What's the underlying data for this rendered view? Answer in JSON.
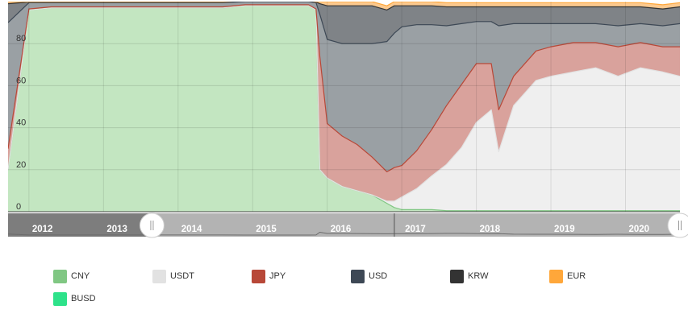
{
  "chart_data": {
    "type": "area",
    "stacked": true,
    "percent": true,
    "yticks": [
      0,
      20,
      40,
      60,
      80
    ],
    "ylim": [
      0,
      100
    ],
    "xlim": [
      2011.72,
      2020.73
    ],
    "year_labels": [
      "2012",
      "2013",
      "2014",
      "2015",
      "2016",
      "2017",
      "2018",
      "2019",
      "2020"
    ],
    "grid": true,
    "legend_position": "bottom",
    "navigator": {
      "range_start": 2011.72,
      "range_end": 2020.73,
      "left_handle_at": 2013.65,
      "right_handle_at": 2020.73
    },
    "x": [
      2011.72,
      2012.0,
      2012.3,
      2012.6,
      2012.9,
      2013.2,
      2013.5,
      2013.75,
      2014.0,
      2014.3,
      2014.6,
      2014.9,
      2015.2,
      2015.5,
      2015.75,
      2015.85,
      2015.9,
      2016.0,
      2016.2,
      2016.4,
      2016.6,
      2016.8,
      2016.9,
      2017.0,
      2017.2,
      2017.4,
      2017.6,
      2017.8,
      2018.0,
      2018.2,
      2018.3,
      2018.5,
      2018.8,
      2019.0,
      2019.3,
      2019.6,
      2019.9,
      2020.2,
      2020.5,
      2020.73
    ],
    "series": [
      {
        "name": "CNY",
        "color": "#80c783",
        "values": [
          20,
          96,
          97,
          97,
          97,
          97,
          97,
          97,
          97,
          97,
          97,
          98,
          98,
          98,
          98,
          96,
          20,
          16,
          12,
          10,
          8,
          4,
          2,
          1,
          1,
          1,
          0.5,
          0.5,
          0.5,
          0.5,
          0.5,
          0.5,
          0.5,
          0.5,
          0.5,
          0.5,
          0.5,
          0.5,
          0.5,
          0.5
        ]
      },
      {
        "name": "USDT",
        "color": "#e2e2e2",
        "values": [
          0,
          0,
          0,
          0,
          0,
          0,
          0,
          0,
          0,
          0,
          0,
          0,
          0,
          0,
          0,
          0,
          0,
          0,
          0,
          0,
          0,
          1,
          3,
          6,
          10,
          16,
          22,
          30,
          42,
          48,
          28,
          50,
          62,
          64,
          66,
          68,
          64,
          68,
          66,
          64
        ]
      },
      {
        "name": "JPY",
        "color": "#b84838",
        "values": [
          10,
          0.5,
          0.5,
          0.5,
          0.5,
          0.5,
          0.5,
          0.5,
          0.5,
          0.5,
          0.5,
          0.5,
          0.5,
          0.5,
          0.5,
          0.5,
          54,
          26,
          24,
          22,
          18,
          14,
          16,
          15,
          18,
          22,
          28,
          30,
          28,
          22,
          20,
          14,
          14,
          14,
          14,
          12,
          14,
          12,
          12,
          14
        ]
      },
      {
        "name": "USD",
        "color": "#3d4855",
        "values": [
          60,
          3,
          2,
          2,
          2,
          2,
          2,
          2,
          2,
          2,
          2,
          1.5,
          1.5,
          1.5,
          1.5,
          3,
          20,
          40,
          44,
          48,
          54,
          62,
          64,
          66,
          60,
          50,
          38,
          29,
          20,
          20,
          40,
          25,
          13,
          11,
          9,
          9,
          10,
          9,
          10,
          11
        ]
      },
      {
        "name": "KRW",
        "color": "#333333",
        "values": [
          9,
          0.3,
          0.3,
          0.3,
          0.3,
          0.3,
          0.3,
          0.3,
          0.3,
          0.3,
          0.3,
          0.3,
          0.3,
          0.3,
          0.3,
          0.3,
          5,
          16,
          18,
          18,
          18,
          15,
          13,
          10,
          9,
          9,
          9,
          8,
          7,
          7,
          9,
          8,
          8,
          8,
          8,
          8,
          9,
          8,
          8,
          8
        ]
      },
      {
        "name": "EUR",
        "color": "#ffa73a",
        "values": [
          1,
          0.2,
          0.2,
          0.2,
          0.2,
          0.2,
          0.2,
          0.2,
          0.2,
          0.2,
          0.2,
          0.2,
          0.2,
          0.2,
          0.2,
          0.2,
          1,
          2,
          2,
          2,
          2,
          2,
          2,
          2,
          2,
          2,
          2,
          2,
          2,
          2,
          2,
          2,
          2,
          2,
          2,
          2,
          2,
          2,
          2,
          2
        ]
      },
      {
        "name": "BUSD",
        "color": "#2ee28a",
        "values": [
          0,
          0,
          0,
          0,
          0,
          0,
          0,
          0,
          0,
          0,
          0,
          0,
          0,
          0,
          0,
          0,
          0,
          0,
          0,
          0,
          0,
          0,
          0,
          0,
          0,
          0,
          0,
          0,
          0,
          0,
          0,
          0,
          0,
          0,
          0,
          0,
          0,
          0,
          0,
          0
        ]
      }
    ]
  }
}
